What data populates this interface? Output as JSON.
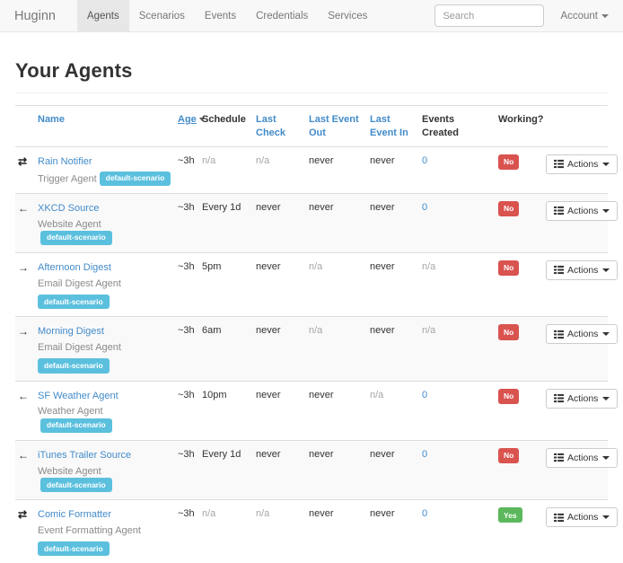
{
  "navbar": {
    "brand": "Huginn",
    "items": [
      {
        "label": "Agents",
        "active": true
      },
      {
        "label": "Scenarios",
        "active": false
      },
      {
        "label": "Events",
        "active": false
      },
      {
        "label": "Credentials",
        "active": false
      },
      {
        "label": "Services",
        "active": false
      }
    ],
    "search_placeholder": "Search",
    "account_label": "Account"
  },
  "page": {
    "title": "Your Agents"
  },
  "colors": {
    "link": "#428bca",
    "info": "#5bc0de",
    "danger": "#d9534f",
    "success": "#5cb85c",
    "muted": "#a6a6a6"
  },
  "icons": {
    "arrows-both": "⇄",
    "arrow-left": "←",
    "arrow-right": "→"
  },
  "table": {
    "headers": [
      {
        "label": "Name",
        "link": true
      },
      {
        "label": "Age",
        "link": true,
        "sorted": "desc"
      },
      {
        "label": "Schedule",
        "link": false
      },
      {
        "label": "Last Check",
        "link": true
      },
      {
        "label": "Last Event Out",
        "link": true
      },
      {
        "label": "Last Event In",
        "link": true
      },
      {
        "label": "Events Created",
        "link": false
      },
      {
        "label": "Working?",
        "link": false
      }
    ],
    "actions_label": "Actions",
    "rows": [
      {
        "icon": "arrows-both",
        "name": "Rain Notifier",
        "type": "Trigger Agent",
        "scenario": "default-scenario",
        "badge_inline": true,
        "age": "~3h",
        "schedule": {
          "text": "n/a",
          "muted": true
        },
        "last_check": {
          "text": "n/a",
          "muted": true
        },
        "last_event_out": {
          "text": "never"
        },
        "last_event_in": {
          "text": "never"
        },
        "events_created": {
          "text": "0",
          "link": true
        },
        "working": {
          "text": "No",
          "status": "no"
        }
      },
      {
        "icon": "arrow-left",
        "name": "XKCD Source",
        "type": "Website Agent",
        "scenario": "default-scenario",
        "badge_inline": true,
        "age": "~3h",
        "schedule": {
          "text": "Every 1d"
        },
        "last_check": {
          "text": "never"
        },
        "last_event_out": {
          "text": "never"
        },
        "last_event_in": {
          "text": "never"
        },
        "events_created": {
          "text": "0",
          "link": true
        },
        "working": {
          "text": "No",
          "status": "no"
        }
      },
      {
        "icon": "arrow-right",
        "name": "Afternoon Digest",
        "type": "Email Digest Agent",
        "scenario": "default-scenario",
        "badge_inline": false,
        "age": "~3h",
        "schedule": {
          "text": "5pm"
        },
        "last_check": {
          "text": "never"
        },
        "last_event_out": {
          "text": "n/a",
          "muted": true
        },
        "last_event_in": {
          "text": "never"
        },
        "events_created": {
          "text": "n/a",
          "muted": true
        },
        "working": {
          "text": "No",
          "status": "no"
        }
      },
      {
        "icon": "arrow-right",
        "name": "Morning Digest",
        "type": "Email Digest Agent",
        "scenario": "default-scenario",
        "badge_inline": false,
        "age": "~3h",
        "schedule": {
          "text": "6am"
        },
        "last_check": {
          "text": "never"
        },
        "last_event_out": {
          "text": "n/a",
          "muted": true
        },
        "last_event_in": {
          "text": "never"
        },
        "events_created": {
          "text": "n/a",
          "muted": true
        },
        "working": {
          "text": "No",
          "status": "no"
        }
      },
      {
        "icon": "arrow-left",
        "name": "SF Weather Agent",
        "type": "Weather Agent",
        "scenario": "default-scenario",
        "badge_inline": true,
        "age": "~3h",
        "schedule": {
          "text": "10pm"
        },
        "last_check": {
          "text": "never"
        },
        "last_event_out": {
          "text": "never"
        },
        "last_event_in": {
          "text": "n/a",
          "muted": true
        },
        "events_created": {
          "text": "0",
          "link": true
        },
        "working": {
          "text": "No",
          "status": "no"
        }
      },
      {
        "icon": "arrow-left",
        "name": "iTunes Trailer Source",
        "type": "Website Agent",
        "scenario": "default-scenario",
        "badge_inline": true,
        "age": "~3h",
        "schedule": {
          "text": "Every 1d"
        },
        "last_check": {
          "text": "never"
        },
        "last_event_out": {
          "text": "never"
        },
        "last_event_in": {
          "text": "never"
        },
        "events_created": {
          "text": "0",
          "link": true
        },
        "working": {
          "text": "No",
          "status": "no"
        }
      },
      {
        "icon": "arrows-both",
        "name": "Comic Formatter",
        "type": "Event Formatting Agent",
        "scenario": "default-scenario",
        "badge_inline": false,
        "age": "~3h",
        "schedule": {
          "text": "n/a",
          "muted": true
        },
        "last_check": {
          "text": "n/a",
          "muted": true
        },
        "last_event_out": {
          "text": "never"
        },
        "last_event_in": {
          "text": "never"
        },
        "events_created": {
          "text": "0",
          "link": true
        },
        "working": {
          "text": "Yes",
          "status": "yes"
        }
      }
    ]
  }
}
